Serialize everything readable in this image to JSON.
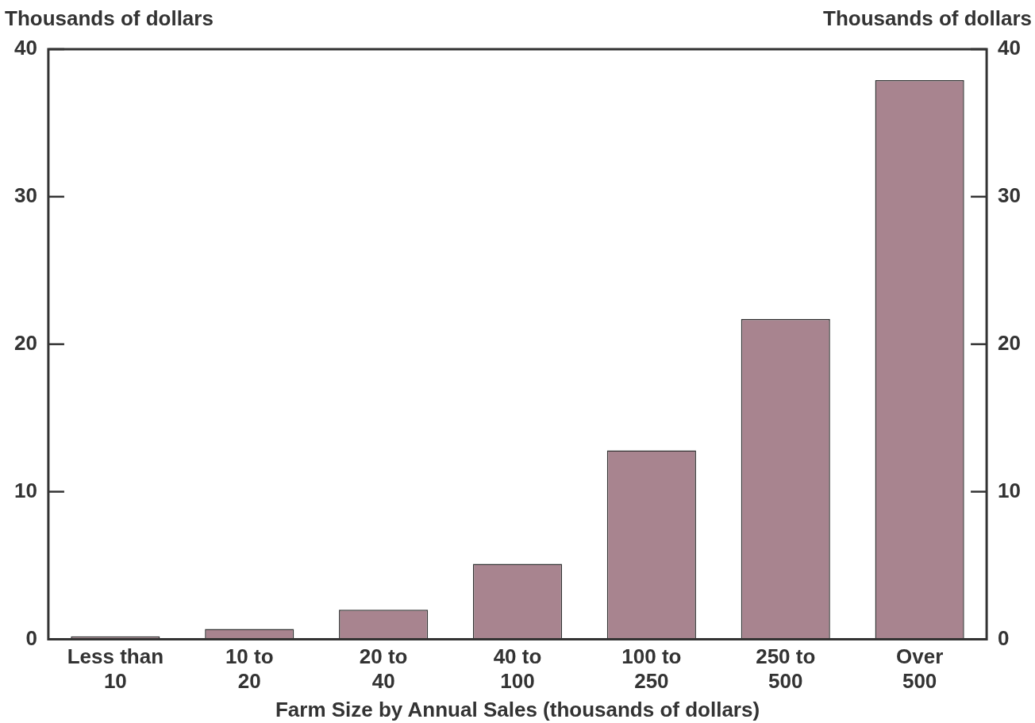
{
  "chart_data": {
    "type": "bar",
    "xlabel": "Farm Size by Annual Sales (thousands of dollars)",
    "ylabel": "Thousands of dollars",
    "y2label": "Thousands of dollars",
    "categories": [
      "Less than 10",
      "10 to 20",
      "20 to 40",
      "40 to 100",
      "100 to 250",
      "250 to 500",
      "Over 500"
    ],
    "values": [
      0.2,
      0.7,
      2.0,
      5.1,
      12.8,
      21.7,
      37.9
    ],
    "color": "#a8848f",
    "ylim": [
      0,
      40
    ],
    "yticks": [
      0,
      10,
      20,
      30,
      40
    ],
    "y2lim": [
      0,
      40
    ],
    "y2ticks": [
      0,
      10,
      20,
      30,
      40
    ],
    "grid": false,
    "legend": false
  }
}
